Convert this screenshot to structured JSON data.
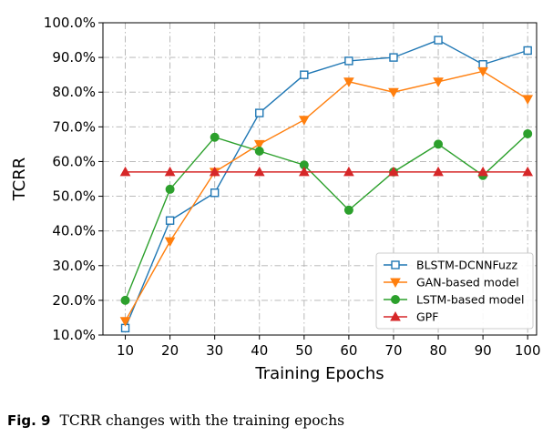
{
  "chart_data": {
    "type": "line",
    "xlabel": "Training Epochs",
    "ylabel": "TCRR",
    "x": [
      10,
      20,
      30,
      40,
      50,
      60,
      70,
      80,
      90,
      100
    ],
    "xlim": [
      5,
      102
    ],
    "ylim": [
      10,
      100
    ],
    "y_ticks": [
      "10.0%",
      "20.0%",
      "30.0%",
      "40.0%",
      "50.0%",
      "60.0%",
      "70.0%",
      "80.0%",
      "90.0%",
      "100.0%"
    ],
    "y_tick_values": [
      10,
      20,
      30,
      40,
      50,
      60,
      70,
      80,
      90,
      100
    ],
    "x_ticks": [
      "10",
      "20",
      "30",
      "40",
      "50",
      "60",
      "70",
      "80",
      "90",
      "100"
    ],
    "grid": true,
    "legend_position": "bottom-right",
    "series": [
      {
        "name": "BLSTM-DCNNFuzz",
        "color": "#1f77b4",
        "marker": "square-open",
        "values": [
          12,
          43,
          51,
          74,
          85,
          89,
          90,
          95,
          88,
          92
        ]
      },
      {
        "name": "GAN-based model",
        "color": "#ff7f0e",
        "marker": "triangle-down",
        "values": [
          14,
          37,
          57,
          65,
          72,
          83,
          80,
          83,
          86,
          78
        ]
      },
      {
        "name": "LSTM-based model",
        "color": "#2ca02c",
        "marker": "circle",
        "values": [
          20,
          52,
          67,
          63,
          59,
          46,
          57,
          65,
          56,
          68
        ]
      },
      {
        "name": "GPF",
        "color": "#d62728",
        "marker": "triangle-up",
        "values": [
          57,
          57,
          57,
          57,
          57,
          57,
          57,
          57,
          57,
          57
        ]
      }
    ]
  },
  "caption": {
    "fig_label": "Fig. 9",
    "text": "TCRR changes with the training epochs"
  }
}
